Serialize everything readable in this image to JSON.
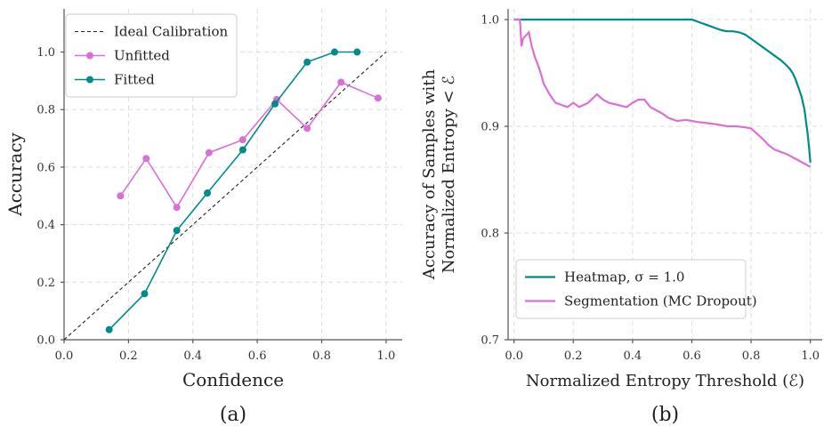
{
  "chart_data": [
    {
      "type": "line",
      "panel_label": "(a)",
      "xlabel": "Confidence",
      "ylabel": "Accuracy",
      "xlim": [
        0.0,
        1.05
      ],
      "ylim": [
        0.0,
        1.15
      ],
      "xticks": [
        "0.0",
        "0.2",
        "0.4",
        "0.6",
        "0.8",
        "1.0"
      ],
      "xtick_values": [
        0.0,
        0.2,
        0.4,
        0.6,
        0.8,
        1.0
      ],
      "yticks": [
        "0.0",
        "0.2",
        "0.4",
        "0.6",
        "0.8",
        "1.0"
      ],
      "ytick_values": [
        0.0,
        0.2,
        0.4,
        0.6,
        0.8,
        1.0
      ],
      "grid": true,
      "legend_position": "upper-left",
      "series": [
        {
          "name": "Ideal Calibration",
          "color": "#222222",
          "style": "dashed",
          "marker": false,
          "x": [
            0.0,
            1.0
          ],
          "y": [
            0.0,
            1.0
          ]
        },
        {
          "name": "Unfitted",
          "color": "#da70d6",
          "style": "solid",
          "marker": true,
          "x": [
            0.175,
            0.255,
            0.35,
            0.45,
            0.555,
            0.66,
            0.755,
            0.86,
            0.975
          ],
          "y": [
            0.5,
            0.63,
            0.46,
            0.65,
            0.695,
            0.835,
            0.735,
            0.895,
            0.84
          ]
        },
        {
          "name": "Fitted",
          "color": "#008b8b",
          "style": "solid",
          "marker": true,
          "x": [
            0.14,
            0.25,
            0.35,
            0.445,
            0.555,
            0.655,
            0.755,
            0.84,
            0.91
          ],
          "y": [
            0.035,
            0.16,
            0.38,
            0.51,
            0.66,
            0.82,
            0.965,
            1.0,
            1.0
          ]
        }
      ]
    },
    {
      "type": "line",
      "panel_label": "(b)",
      "xlabel": "Normalized Entropy Threshold (ℰ)",
      "ylabel_lines": [
        "Accuracy of Samples with",
        "Normalized Entropy < ℰ"
      ],
      "xlim": [
        -0.02,
        1.04
      ],
      "ylim": [
        0.7,
        1.01
      ],
      "xticks": [
        "0.0",
        "0.2",
        "0.4",
        "0.6",
        "0.8",
        "1.0"
      ],
      "xtick_values": [
        0.0,
        0.2,
        0.4,
        0.6,
        0.8,
        1.0
      ],
      "yticks": [
        "0.7",
        "0.8",
        "0.9",
        "1.0"
      ],
      "ytick_values": [
        0.7,
        0.8,
        0.9,
        1.0
      ],
      "grid": true,
      "legend_position": "lower-left",
      "series": [
        {
          "name": "Heatmap, σ = 1.0",
          "color": "#008b8b",
          "style": "solid",
          "x": [
            0.0,
            0.1,
            0.2,
            0.3,
            0.4,
            0.5,
            0.6,
            0.62,
            0.64,
            0.66,
            0.68,
            0.7,
            0.72,
            0.74,
            0.76,
            0.78,
            0.8,
            0.82,
            0.84,
            0.86,
            0.88,
            0.9,
            0.92,
            0.93,
            0.94,
            0.95,
            0.96,
            0.97,
            0.98,
            0.985,
            0.99,
            0.995,
            1.0
          ],
          "y": [
            1.0,
            1.0,
            1.0,
            1.0,
            1.0,
            1.0,
            1.0,
            0.998,
            0.996,
            0.994,
            0.992,
            0.99,
            0.989,
            0.989,
            0.988,
            0.986,
            0.982,
            0.978,
            0.974,
            0.97,
            0.966,
            0.962,
            0.957,
            0.954,
            0.95,
            0.944,
            0.936,
            0.928,
            0.916,
            0.905,
            0.895,
            0.882,
            0.866
          ]
        },
        {
          "name": "Segmentation (MC Dropout)",
          "color": "#da70d6",
          "style": "solid",
          "x": [
            0.0,
            0.02,
            0.025,
            0.03,
            0.04,
            0.05,
            0.06,
            0.07,
            0.08,
            0.09,
            0.1,
            0.12,
            0.14,
            0.16,
            0.18,
            0.2,
            0.22,
            0.25,
            0.28,
            0.3,
            0.32,
            0.35,
            0.38,
            0.4,
            0.42,
            0.44,
            0.46,
            0.48,
            0.5,
            0.52,
            0.55,
            0.58,
            0.6,
            0.62,
            0.65,
            0.68,
            0.7,
            0.72,
            0.75,
            0.78,
            0.8,
            0.82,
            0.84,
            0.86,
            0.88,
            0.9,
            0.92,
            0.94,
            0.96,
            0.98,
            1.0
          ],
          "y": [
            1.0,
            1.0,
            0.975,
            0.982,
            0.985,
            0.988,
            0.975,
            0.965,
            0.958,
            0.95,
            0.94,
            0.93,
            0.922,
            0.92,
            0.918,
            0.922,
            0.918,
            0.922,
            0.93,
            0.925,
            0.922,
            0.92,
            0.918,
            0.922,
            0.925,
            0.925,
            0.918,
            0.915,
            0.912,
            0.908,
            0.905,
            0.906,
            0.905,
            0.904,
            0.903,
            0.902,
            0.901,
            0.9,
            0.9,
            0.899,
            0.898,
            0.893,
            0.888,
            0.882,
            0.878,
            0.876,
            0.874,
            0.871,
            0.868,
            0.865,
            0.862
          ]
        }
      ]
    }
  ]
}
